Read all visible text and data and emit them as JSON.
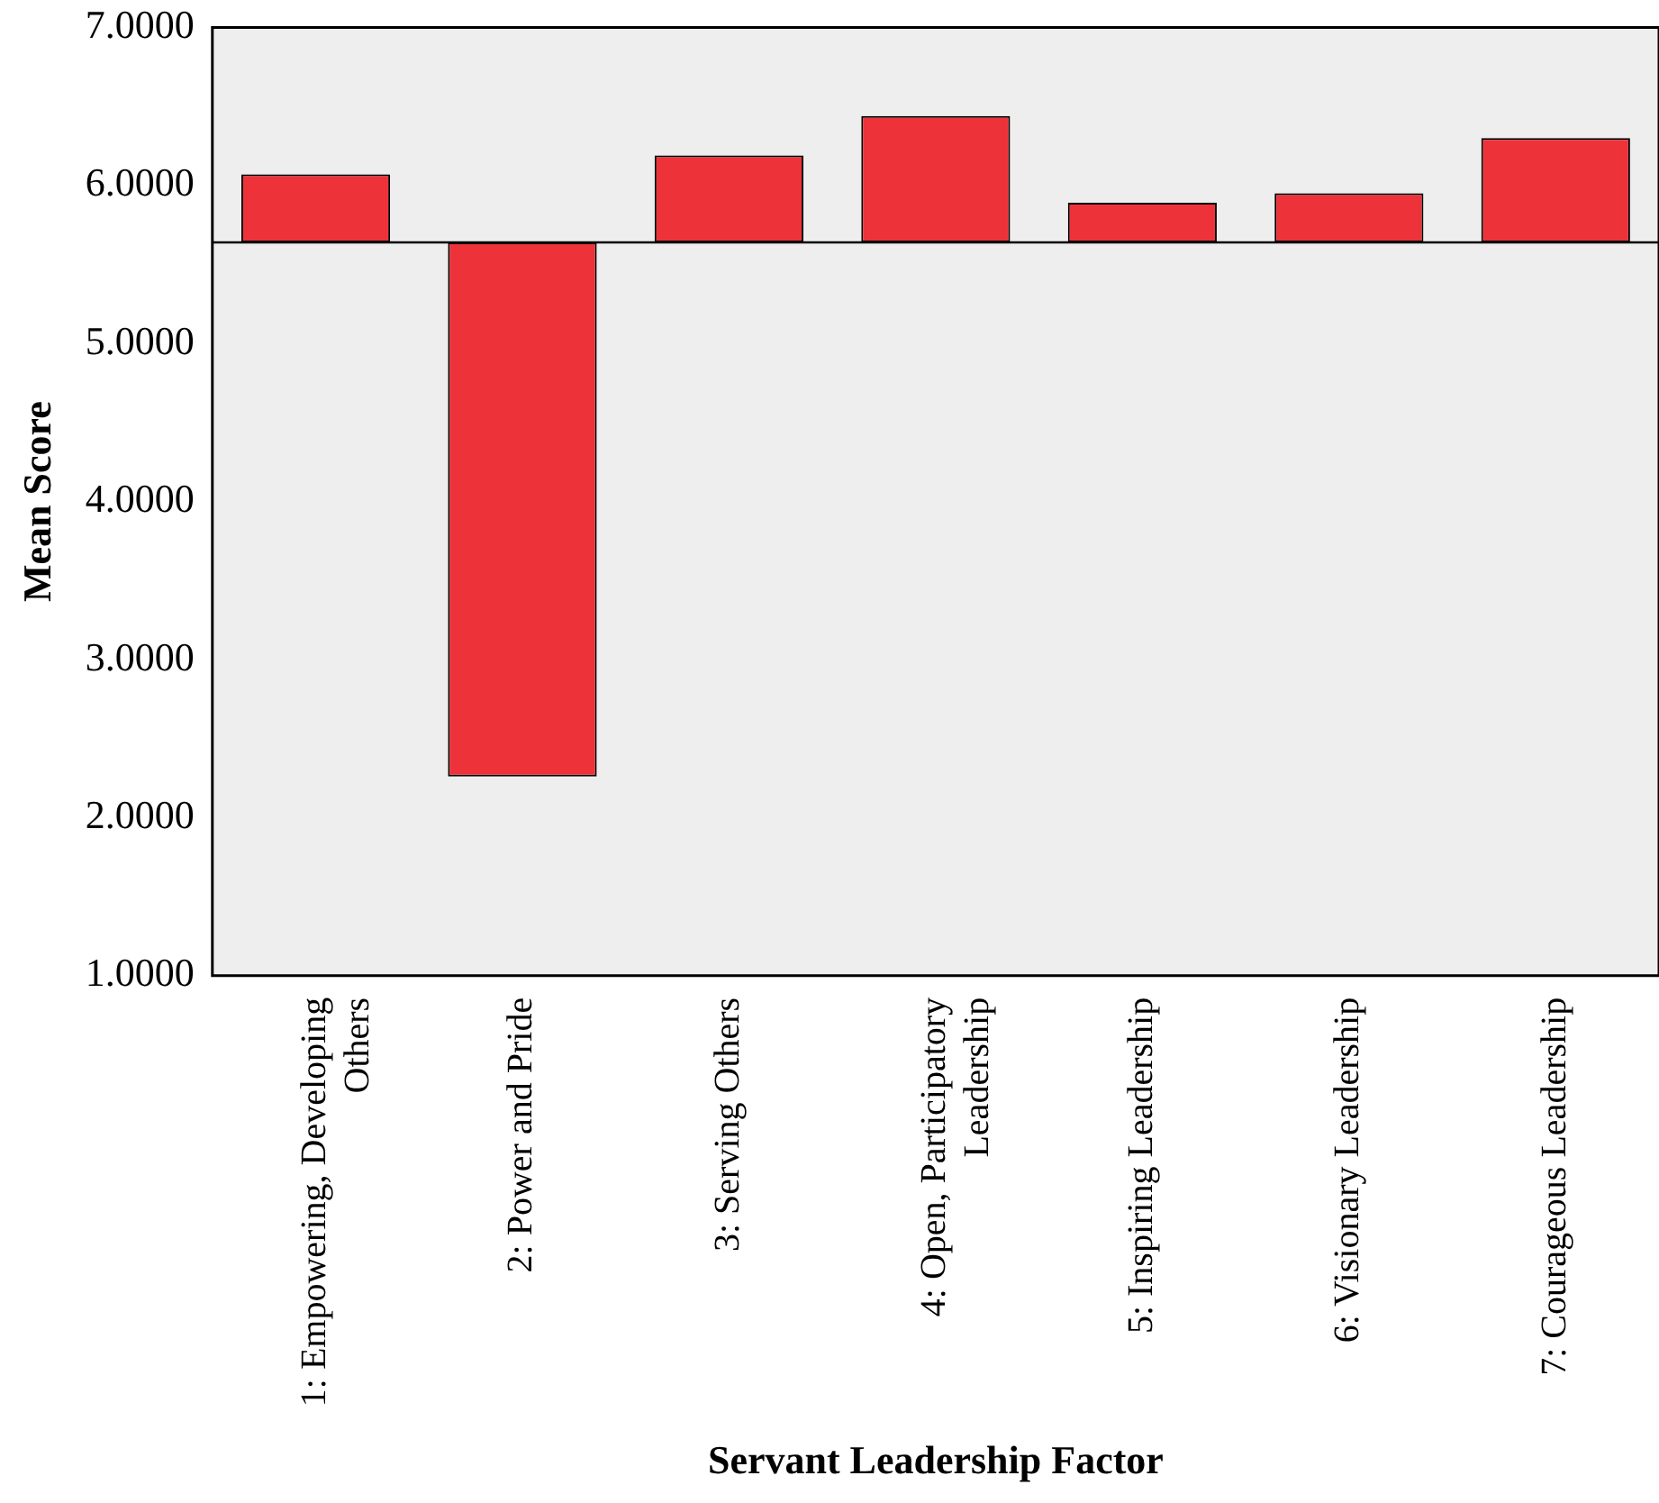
{
  "chart_data": {
    "type": "bar",
    "xlabel": "Servant Leadership Factor",
    "ylabel": "Mean Score",
    "categories": [
      "1: Empowering, Developing Others",
      "2: Power and Pride",
      "3: Serving Others",
      "4: Open, Participatory Leadership",
      "5: Inspiring Leadership",
      "6: Visionary Leadership",
      "7: Courageous Leadership"
    ],
    "base": [
      5.64,
      5.64,
      5.64,
      5.64,
      5.64,
      5.64,
      5.64
    ],
    "values": [
      0.43,
      -3.38,
      0.55,
      0.8,
      0.25,
      0.31,
      0.66
    ],
    "color": "#ee3239",
    "ylim": [
      1,
      7
    ],
    "yticks": [
      {
        "value": 1,
        "label": "1.0000"
      },
      {
        "value": 2,
        "label": "2.0000"
      },
      {
        "value": 3,
        "label": "3.0000"
      },
      {
        "value": 4,
        "label": "4.0000"
      },
      {
        "value": 5,
        "label": "5.0000"
      },
      {
        "value": 6,
        "label": "6.0000"
      },
      {
        "value": 7,
        "label": "7.0000"
      }
    ],
    "ref_lines": [
      {
        "axis": "y",
        "value": 5.64,
        "color": "#000000"
      }
    ],
    "grid": false,
    "legend": false
  }
}
